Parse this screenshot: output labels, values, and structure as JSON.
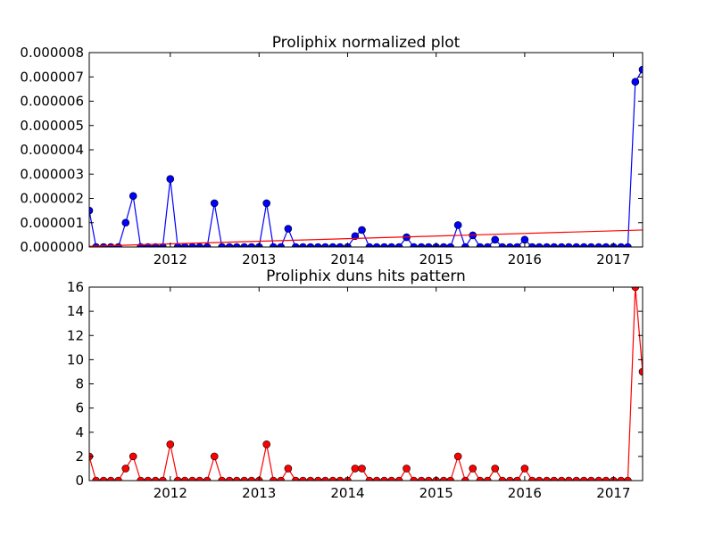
{
  "chart_data": [
    {
      "type": "line",
      "title": "Proliphix normalized plot",
      "xlabel": "",
      "ylabel": "",
      "x_axis": "date",
      "xlim": [
        "2011-02-01",
        "2017-05-01"
      ],
      "ylim": [
        0,
        8e-06
      ],
      "x_tick_labels": [
        "2012",
        "2013",
        "2014",
        "2015",
        "2016",
        "2017"
      ],
      "y_tick_labels": [
        "0.000000",
        "0.000001",
        "0.000002",
        "0.000003",
        "0.000004",
        "0.000005",
        "0.000006",
        "0.000007",
        "0.000008"
      ],
      "x": [
        "2011-02",
        "2011-03",
        "2011-04",
        "2011-05",
        "2011-06",
        "2011-07",
        "2011-08",
        "2011-09",
        "2011-10",
        "2011-11",
        "2011-12",
        "2012-01",
        "2012-02",
        "2012-03",
        "2012-04",
        "2012-05",
        "2012-06",
        "2012-07",
        "2012-08",
        "2012-09",
        "2012-10",
        "2012-11",
        "2012-12",
        "2013-01",
        "2013-02",
        "2013-03",
        "2013-04",
        "2013-05",
        "2013-06",
        "2013-07",
        "2013-08",
        "2013-09",
        "2013-10",
        "2013-11",
        "2013-12",
        "2014-01",
        "2014-02",
        "2014-03",
        "2014-04",
        "2014-05",
        "2014-06",
        "2014-07",
        "2014-08",
        "2014-09",
        "2014-10",
        "2014-11",
        "2014-12",
        "2015-01",
        "2015-02",
        "2015-03",
        "2015-04",
        "2015-05",
        "2015-06",
        "2015-07",
        "2015-08",
        "2015-09",
        "2015-10",
        "2015-11",
        "2015-12",
        "2016-01",
        "2016-02",
        "2016-03",
        "2016-04",
        "2016-05",
        "2016-06",
        "2016-07",
        "2016-08",
        "2016-09",
        "2016-10",
        "2016-11",
        "2016-12",
        "2017-01",
        "2017-02",
        "2017-03",
        "2017-04",
        "2017-05"
      ],
      "series": [
        {
          "color": "#0000ff",
          "marker": "circle",
          "values": [
            1.5e-06,
            0,
            0,
            0,
            0,
            1e-06,
            2.1e-06,
            0,
            0,
            0,
            0,
            2.8e-06,
            0,
            0,
            0,
            0,
            0,
            1.8e-06,
            0,
            0,
            0,
            0,
            0,
            0,
            1.8e-06,
            0,
            0,
            7.5e-07,
            0,
            0,
            0,
            0,
            0,
            0,
            0,
            0,
            4.5e-07,
            7e-07,
            0,
            0,
            0,
            0,
            0,
            4e-07,
            0,
            0,
            0,
            0,
            0,
            0,
            9e-07,
            0,
            4.8e-07,
            0,
            0,
            3e-07,
            0,
            0,
            0,
            3e-07,
            0,
            0,
            0,
            0,
            0,
            0,
            0,
            0,
            0,
            0,
            0,
            0,
            0,
            0,
            6.8e-06,
            7.3e-06
          ]
        },
        {
          "color": "#ff0000",
          "marker": "none",
          "line_type": "linear-trend",
          "x": [
            "2011-02-01",
            "2017-05-01"
          ],
          "values": [
            3e-08,
            7e-07
          ]
        }
      ]
    },
    {
      "type": "line",
      "title": "Proliphix duns hits pattern",
      "xlabel": "",
      "ylabel": "",
      "x_axis": "date",
      "xlim": [
        "2011-02-01",
        "2017-05-01"
      ],
      "ylim": [
        0,
        16
      ],
      "x_tick_labels": [
        "2012",
        "2013",
        "2014",
        "2015",
        "2016",
        "2017"
      ],
      "y_tick_labels": [
        "0",
        "2",
        "4",
        "6",
        "8",
        "10",
        "12",
        "14",
        "16"
      ],
      "x": [
        "2011-02",
        "2011-03",
        "2011-04",
        "2011-05",
        "2011-06",
        "2011-07",
        "2011-08",
        "2011-09",
        "2011-10",
        "2011-11",
        "2011-12",
        "2012-01",
        "2012-02",
        "2012-03",
        "2012-04",
        "2012-05",
        "2012-06",
        "2012-07",
        "2012-08",
        "2012-09",
        "2012-10",
        "2012-11",
        "2012-12",
        "2013-01",
        "2013-02",
        "2013-03",
        "2013-04",
        "2013-05",
        "2013-06",
        "2013-07",
        "2013-08",
        "2013-09",
        "2013-10",
        "2013-11",
        "2013-12",
        "2014-01",
        "2014-02",
        "2014-03",
        "2014-04",
        "2014-05",
        "2014-06",
        "2014-07",
        "2014-08",
        "2014-09",
        "2014-10",
        "2014-11",
        "2014-12",
        "2015-01",
        "2015-02",
        "2015-03",
        "2015-04",
        "2015-05",
        "2015-06",
        "2015-07",
        "2015-08",
        "2015-09",
        "2015-10",
        "2015-11",
        "2015-12",
        "2016-01",
        "2016-02",
        "2016-03",
        "2016-04",
        "2016-05",
        "2016-06",
        "2016-07",
        "2016-08",
        "2016-09",
        "2016-10",
        "2016-11",
        "2016-12",
        "2017-01",
        "2017-02",
        "2017-03",
        "2017-04",
        "2017-05"
      ],
      "series": [
        {
          "color": "#ff0000",
          "marker": "circle",
          "values": [
            2,
            0,
            0,
            0,
            0,
            1,
            2,
            0,
            0,
            0,
            0,
            3,
            0,
            0,
            0,
            0,
            0,
            2,
            0,
            0,
            0,
            0,
            0,
            0,
            3,
            0,
            0,
            1,
            0,
            0,
            0,
            0,
            0,
            0,
            0,
            0,
            1,
            1,
            0,
            0,
            0,
            0,
            0,
            1,
            0,
            0,
            0,
            0,
            0,
            0,
            2,
            0,
            1,
            0,
            0,
            1,
            0,
            0,
            0,
            1,
            0,
            0,
            0,
            0,
            0,
            0,
            0,
            0,
            0,
            0,
            0,
            0,
            0,
            0,
            16,
            9
          ]
        }
      ]
    }
  ]
}
